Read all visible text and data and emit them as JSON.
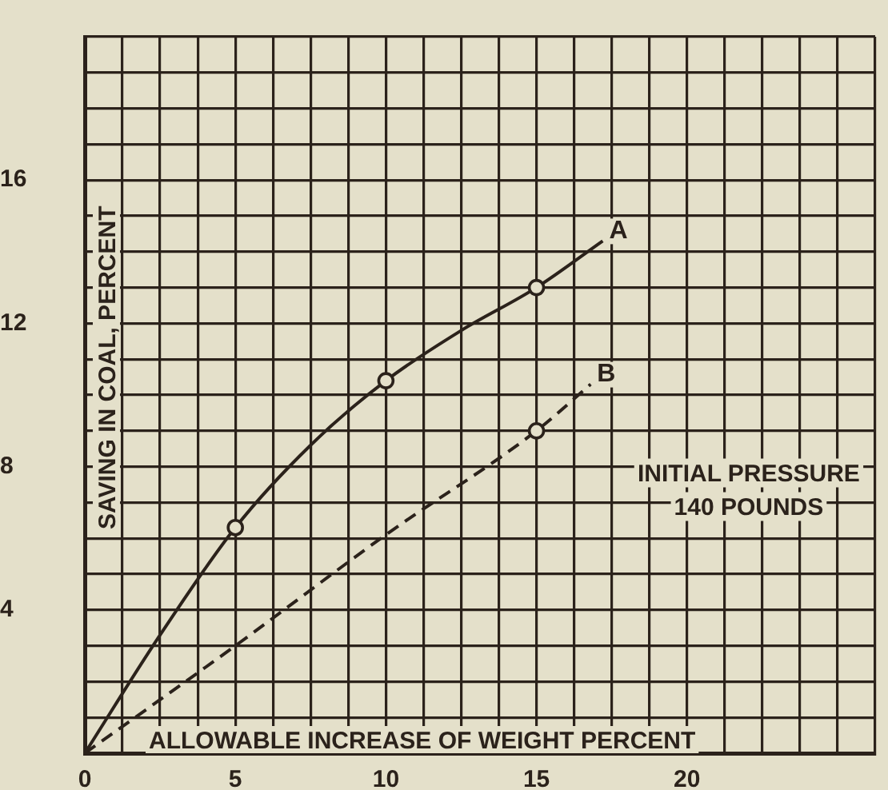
{
  "chart_data": {
    "type": "line",
    "xlabel": "ALLOWABLE INCREASE OF WEIGHT PERCENT",
    "ylabel": "SAVING IN COAL, PERCENT",
    "annotations": [
      "INITIAL PRESSURE\n140 POUNDS"
    ],
    "xlim": [
      0,
      26.25
    ],
    "xticks": [
      {
        "value": 0,
        "label": "0"
      },
      {
        "value": 1.25,
        "label": null
      },
      {
        "value": 2.5,
        "label": null
      },
      {
        "value": 3.75,
        "label": null
      },
      {
        "value": 5,
        "label": "5"
      },
      {
        "value": 6.25,
        "label": null
      },
      {
        "value": 7.5,
        "label": null
      },
      {
        "value": 8.75,
        "label": null
      },
      {
        "value": 10,
        "label": "10"
      },
      {
        "value": 11.25,
        "label": null
      },
      {
        "value": 12.5,
        "label": null
      },
      {
        "value": 13.75,
        "label": null
      },
      {
        "value": 15,
        "label": "15"
      },
      {
        "value": 16.25,
        "label": null
      },
      {
        "value": 17.5,
        "label": null
      },
      {
        "value": 18.75,
        "label": null
      },
      {
        "value": 20,
        "label": "20"
      },
      {
        "value": 21.25,
        "label": null
      },
      {
        "value": 22.5,
        "label": null
      },
      {
        "value": 23.75,
        "label": null
      },
      {
        "value": 25,
        "label": null
      },
      {
        "value": 26.25,
        "label": null
      }
    ],
    "ylim": [
      0,
      20
    ],
    "yticks": [
      {
        "value": 0,
        "label": null
      },
      {
        "value": 1,
        "label": null
      },
      {
        "value": 2,
        "label": null
      },
      {
        "value": 3,
        "label": null
      },
      {
        "value": 4,
        "label": "4"
      },
      {
        "value": 5,
        "label": null
      },
      {
        "value": 6,
        "label": null
      },
      {
        "value": 7,
        "label": null
      },
      {
        "value": 8,
        "label": "8"
      },
      {
        "value": 9,
        "label": null
      },
      {
        "value": 10,
        "label": null
      },
      {
        "value": 11,
        "label": null
      },
      {
        "value": 12,
        "label": "12"
      },
      {
        "value": 13,
        "label": null
      },
      {
        "value": 14,
        "label": null
      },
      {
        "value": 15,
        "label": null
      },
      {
        "value": 16,
        "label": "16"
      },
      {
        "value": 17,
        "label": null
      },
      {
        "value": 18,
        "label": null
      },
      {
        "value": 19,
        "label": null
      },
      {
        "value": 20,
        "label": null
      }
    ],
    "grid": true,
    "legend": false,
    "series": [
      {
        "name": "A",
        "color": "#2b221b",
        "marker": "none",
        "line_style": "solid",
        "x": [
          0,
          2.5,
          5,
          7.5,
          10,
          12.5,
          15,
          17.2
        ],
        "values": [
          0,
          3.3,
          6.3,
          8.6,
          10.4,
          11.8,
          13.0,
          14.3
        ]
      },
      {
        "name": "B",
        "color": "#2b221b",
        "marker": "none",
        "line_style": "dashed",
        "x": [
          0,
          5,
          10,
          15,
          16.8
        ],
        "values": [
          0,
          3.0,
          6.1,
          9.0,
          10.3
        ]
      },
      {
        "type": "scatter",
        "color": "#2b221b",
        "marker": "circle",
        "x": [
          5,
          10,
          15,
          15
        ],
        "values": [
          6.3,
          10.4,
          13.0,
          9.0
        ]
      }
    ]
  }
}
